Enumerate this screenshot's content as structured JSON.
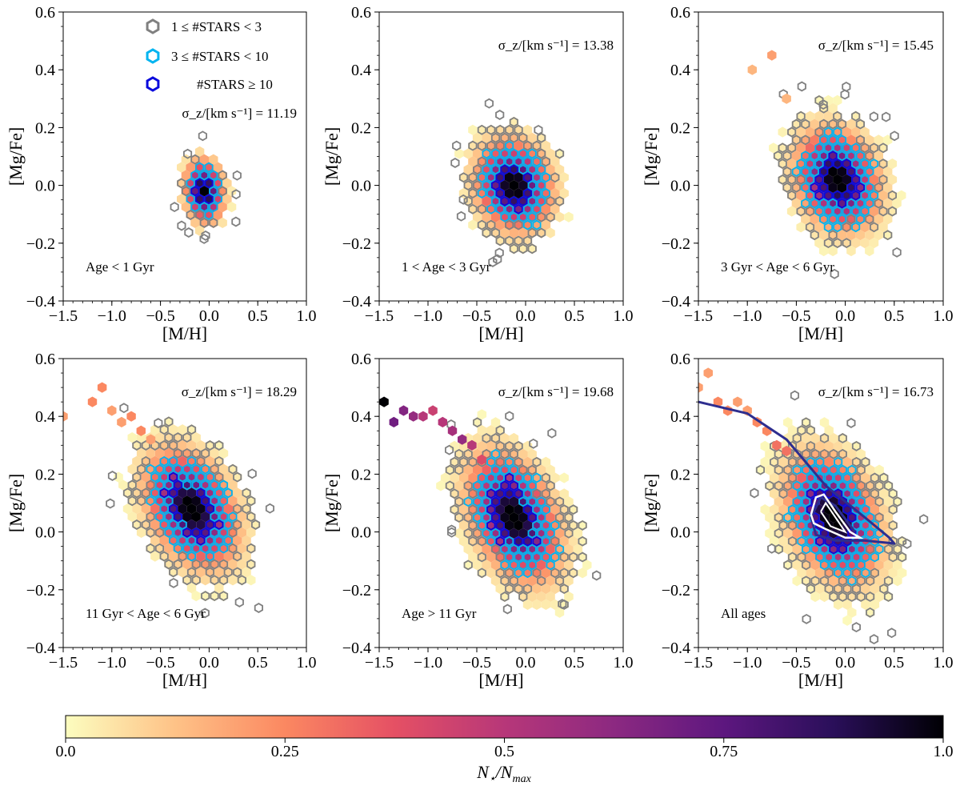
{
  "colors": {
    "low_count": "#808080",
    "mid_count": "#00b4f0",
    "high_count": "#0a0adc",
    "contour_outer": "#2e2e8f",
    "contour_inner": "#ffffff"
  },
  "colormap_stops": [
    "#fcfdbf",
    "#fec287",
    "#fb8861",
    "#e55064",
    "#b73779",
    "#8c2981",
    "#5d177f",
    "#2a0f5a",
    "#000004"
  ],
  "chart_data": [
    {
      "type": "hexbin",
      "x_label": "[M/H]",
      "y_label": "[Mg/Fe]",
      "xlim": [
        -1.5,
        1.0
      ],
      "ylim": [
        -0.4,
        0.6
      ],
      "x_ticks": [
        "−1.5",
        "−1.0",
        "−0.5",
        "0.0",
        "0.5",
        "1.0"
      ],
      "y_ticks": [
        "0.6",
        "0.4",
        "0.2",
        "0.0",
        "−0.2",
        "−0.4"
      ],
      "sigma_label": "σ_z/[km s⁻¹] = 11.19",
      "age_label": "Age < 1 Gyr",
      "center": [
        -0.05,
        -0.02
      ],
      "spread": [
        0.13,
        0.07
      ],
      "slope": -0.05,
      "extent": 2.1,
      "tail": []
    },
    {
      "type": "hexbin",
      "x_label": "[M/H]",
      "y_label": "[Mg/Fe]",
      "xlim": [
        -1.5,
        1.0
      ],
      "ylim": [
        -0.4,
        0.6
      ],
      "x_ticks": [
        "−1.5",
        "−1.0",
        "−0.5",
        "0.0",
        "0.5",
        "1.0"
      ],
      "y_ticks": [
        "0.6",
        "0.4",
        "0.2",
        "0.0",
        "−0.2",
        "−0.4"
      ],
      "sigma_label": "σ_z/[km s⁻¹] = 13.38",
      "age_label": "1 < Age < 3 Gyr",
      "center": [
        -0.12,
        0.0
      ],
      "spread": [
        0.25,
        0.1
      ],
      "slope": -0.05,
      "extent": 2.2,
      "tail": []
    },
    {
      "type": "hexbin",
      "x_label": "[M/H]",
      "y_label": "[Mg/Fe]",
      "xlim": [
        -1.5,
        1.0
      ],
      "ylim": [
        -0.4,
        0.6
      ],
      "x_ticks": [
        "−1.5",
        "−1.0",
        "−0.5",
        "0.0",
        "0.5",
        "1.0"
      ],
      "y_ticks": [
        "0.6",
        "0.4",
        "0.2",
        "0.0",
        "−0.2",
        "−0.4"
      ],
      "sigma_label": "σ_z/[km s⁻¹] = 15.45",
      "age_label": "3 Gyr < Age < 6 Gyr",
      "center": [
        -0.08,
        0.02
      ],
      "spread": [
        0.27,
        0.11
      ],
      "slope": -0.08,
      "extent": 2.3,
      "tail": [
        [
          -0.95,
          0.4,
          0.15
        ],
        [
          -0.75,
          0.45,
          0.2
        ],
        [
          -0.6,
          0.3,
          0.15
        ]
      ]
    },
    {
      "type": "hexbin",
      "x_label": "[M/H]",
      "y_label": "[Mg/Fe]",
      "xlim": [
        -1.5,
        1.0
      ],
      "ylim": [
        -0.4,
        0.6
      ],
      "x_ticks": [
        "−1.5",
        "−1.0",
        "−0.5",
        "0.0",
        "0.5",
        "1.0"
      ],
      "y_ticks": [
        "0.6",
        "0.4",
        "0.2",
        "0.0",
        "−0.2",
        "−0.4"
      ],
      "sigma_label": "σ_z/[km s⁻¹] = 18.29",
      "age_label": "11 Gyr < Age < 6 Gyr",
      "center": [
        -0.18,
        0.08
      ],
      "spread": [
        0.3,
        0.12
      ],
      "slope": -0.15,
      "extent": 2.3,
      "tail": [
        [
          -1.5,
          0.4,
          0.2
        ],
        [
          -1.2,
          0.45,
          0.25
        ],
        [
          -1.1,
          0.5,
          0.25
        ],
        [
          -1.0,
          0.42,
          0.2
        ],
        [
          -0.9,
          0.38,
          0.2
        ],
        [
          -0.8,
          0.4,
          0.25
        ],
        [
          -0.7,
          0.35,
          0.25
        ],
        [
          -0.6,
          0.32,
          0.2
        ]
      ]
    },
    {
      "type": "hexbin",
      "x_label": "[M/H]",
      "y_label": "[Mg/Fe]",
      "xlim": [
        -1.5,
        1.0
      ],
      "ylim": [
        -0.4,
        0.6
      ],
      "x_ticks": [
        "−1.5",
        "−1.0",
        "−0.5",
        "0.0",
        "0.5",
        "1.0"
      ],
      "y_ticks": [
        "0.6",
        "0.4",
        "0.2",
        "0.0",
        "−0.2",
        "−0.4"
      ],
      "sigma_label": "σ_z/[km s⁻¹] = 19.68",
      "age_label": "Age > 11 Gyr",
      "center": [
        -0.12,
        0.05
      ],
      "spread": [
        0.3,
        0.13
      ],
      "slope": -0.18,
      "extent": 2.3,
      "tail": [
        [
          -1.45,
          0.45,
          1.0
        ],
        [
          -1.35,
          0.38,
          0.7
        ],
        [
          -1.25,
          0.42,
          0.65
        ],
        [
          -1.15,
          0.4,
          0.6
        ],
        [
          -1.05,
          0.4,
          0.5
        ],
        [
          -0.95,
          0.42,
          0.45
        ],
        [
          -0.85,
          0.38,
          0.5
        ],
        [
          -0.75,
          0.35,
          0.55
        ],
        [
          -0.65,
          0.32,
          0.6
        ],
        [
          -0.55,
          0.3,
          0.5
        ],
        [
          -0.45,
          0.25,
          0.4
        ]
      ]
    },
    {
      "type": "hexbin",
      "x_label": "[M/H]",
      "y_label": "[Mg/Fe]",
      "xlim": [
        -1.5,
        1.0
      ],
      "ylim": [
        -0.4,
        0.6
      ],
      "x_ticks": [
        "−1.5",
        "−1.0",
        "−0.5",
        "0.0",
        "0.5",
        "1.0"
      ],
      "y_ticks": [
        "0.6",
        "0.4",
        "0.2",
        "0.0",
        "−0.2",
        "−0.4"
      ],
      "sigma_label": "σ_z/[km s⁻¹] = 16.73",
      "age_label": "All ages",
      "center": [
        -0.12,
        0.05
      ],
      "spread": [
        0.3,
        0.13
      ],
      "slope": -0.15,
      "extent": 2.4,
      "tail": [
        [
          -1.5,
          0.5,
          0.2
        ],
        [
          -1.4,
          0.55,
          0.2
        ],
        [
          -1.3,
          0.45,
          0.25
        ],
        [
          -1.2,
          0.42,
          0.25
        ],
        [
          -1.1,
          0.45,
          0.2
        ],
        [
          -1.0,
          0.42,
          0.2
        ],
        [
          -0.9,
          0.38,
          0.25
        ],
        [
          -0.8,
          0.35,
          0.25
        ],
        [
          -0.7,
          0.3,
          0.3
        ],
        [
          -0.6,
          0.28,
          0.3
        ]
      ],
      "contour_outer": [
        [
          -1.5,
          0.45
        ],
        [
          -1.0,
          0.41
        ],
        [
          -0.6,
          0.32
        ],
        [
          -0.2,
          0.16
        ],
        [
          0.2,
          0.05
        ],
        [
          0.45,
          -0.02
        ],
        [
          0.5,
          -0.04
        ],
        [
          0.2,
          -0.03
        ],
        [
          -0.1,
          -0.03
        ],
        [
          -0.3,
          -0.01
        ],
        [
          -0.35,
          0.05
        ],
        [
          -0.25,
          0.12
        ],
        [
          -0.1,
          0.09
        ],
        [
          0.1,
          0.0
        ]
      ],
      "contour_inner": [
        [
          -0.35,
          0.06
        ],
        [
          -0.3,
          0.12
        ],
        [
          -0.22,
          0.13
        ],
        [
          -0.1,
          0.07
        ],
        [
          0.05,
          0.0
        ],
        [
          0.15,
          -0.02
        ],
        [
          0.0,
          -0.02
        ],
        [
          -0.2,
          0.01
        ],
        [
          -0.32,
          0.03
        ],
        [
          -0.35,
          0.06
        ]
      ],
      "contour_inner2": [
        [
          -0.25,
          0.07
        ],
        [
          -0.2,
          0.1
        ],
        [
          -0.1,
          0.05
        ],
        [
          0.0,
          0.0
        ],
        [
          -0.15,
          0.02
        ],
        [
          -0.25,
          0.07
        ]
      ]
    }
  ],
  "legend": {
    "entry_low": "1 ≤ #STARS < 3",
    "entry_mid": "3 ≤ #STARS < 10",
    "entry_high": "#STARS ≥ 10"
  },
  "colorbar": {
    "ticks": [
      "0.0",
      "0.25",
      "0.5",
      "0.75",
      "1.0"
    ],
    "tick_values": [
      0.0,
      0.25,
      0.5,
      0.75,
      1.0
    ],
    "label": "N⋆/Nmax"
  }
}
